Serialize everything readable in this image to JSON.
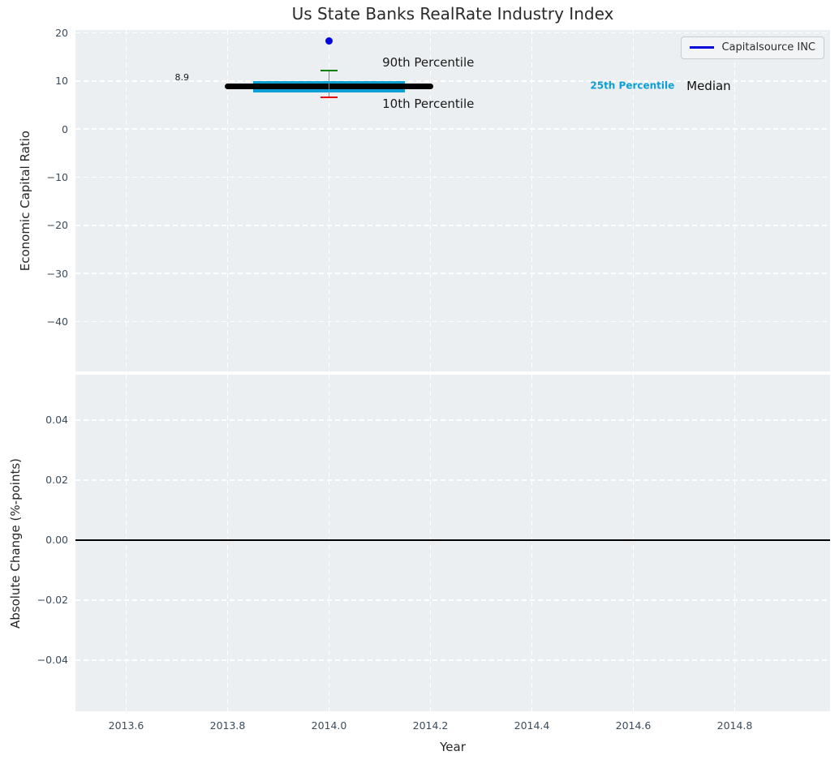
{
  "figure": {
    "title": "Us State Banks RealRate Industry Index",
    "colors": {
      "axes_background": "#ebeff1",
      "grid": "#ffffff",
      "tick_label": "#3b4c5c",
      "text": "#262626",
      "company_blue": "#0404dd",
      "percentile_cyan": "#0d9fd4",
      "p90_green": "#008000",
      "p10_red": "#e8000b",
      "median_black": "#000000"
    }
  },
  "chart_data": [
    {
      "id": "economic-capital-ratio-panel",
      "type": "line",
      "title": "Us State Banks RealRate Industry Index",
      "ylabel": "Economic Capital Ratio",
      "xlim": [
        2013.5,
        2014.988
      ],
      "ylim": [
        -50.4,
        20.6
      ],
      "grid": "white-dashed",
      "legend_position": "upper right",
      "xticks": [
        {
          "v": 2013.6
        },
        {
          "v": 2013.8
        },
        {
          "v": 2014.0
        },
        {
          "v": 2014.2
        },
        {
          "v": 2014.4
        },
        {
          "v": 2014.6
        },
        {
          "v": 2014.8
        }
      ],
      "yticks": [
        {
          "v": 20,
          "label": "20"
        },
        {
          "v": 10,
          "label": "10"
        },
        {
          "v": 0,
          "label": "0"
        },
        {
          "v": -10,
          "label": "−10"
        },
        {
          "v": -20,
          "label": "−20"
        },
        {
          "v": -30,
          "label": "−30"
        },
        {
          "v": -40,
          "label": "−40"
        }
      ],
      "series": [
        {
          "name": "25th Percentile",
          "type": "line",
          "x": [
            2013.85,
            2014.15
          ],
          "y": [
            8.8,
            8.8
          ],
          "color": "#0d9fd4",
          "linewidth": 14,
          "cap": "butt"
        },
        {
          "name": "Median",
          "type": "line",
          "x": [
            2013.8,
            2014.2
          ],
          "y": [
            8.9,
            8.9
          ],
          "color": "#000000",
          "linewidth": 7,
          "cap": "round"
        },
        {
          "name": "10th-90th Percentile Range",
          "type": "errorbar",
          "x": 2014.0,
          "y_low": 6.6,
          "y_high": 12.2,
          "line_color": "#888888",
          "cap_high_color": "#008000",
          "cap_low_color": "#e8000b"
        },
        {
          "name": "Capitalsource INC",
          "type": "scatter",
          "x": [
            2014.0
          ],
          "y": [
            18.4
          ],
          "color": "#0404dd"
        }
      ],
      "annotations": [
        {
          "name": "median-value-label",
          "text": "8.9",
          "x": 2013.71,
          "y": 10.7,
          "size": 11,
          "anchor": "center",
          "color": "#1a1a1a"
        },
        {
          "name": "p90-label",
          "text": "90th Percentile",
          "x": 2014.105,
          "y": 13.8,
          "size": 15,
          "anchor": "left",
          "color": "#1a1a1a"
        },
        {
          "name": "p10-label",
          "text": "10th Percentile",
          "x": 2014.105,
          "y": 5.3,
          "size": 15,
          "anchor": "left",
          "color": "#1a1a1a"
        },
        {
          "name": "p25-label",
          "text": "25th Percentile",
          "x": 2014.515,
          "y": 8.9,
          "size": 12,
          "bold": true,
          "anchor": "left",
          "color": "#0d9fd4"
        },
        {
          "name": "median-label",
          "text": "Median",
          "x": 2014.705,
          "y": 9.0,
          "size": 15,
          "anchor": "left",
          "color": "#111111"
        }
      ],
      "legend": {
        "label": "Capitalsource INC",
        "line_color": "#0404dd"
      }
    },
    {
      "id": "absolute-change-panel",
      "type": "line",
      "ylabel": "Absolute Change (%-points)",
      "xlabel": "Year",
      "xlim": [
        2013.5,
        2014.988
      ],
      "ylim": [
        -0.0571,
        0.0551
      ],
      "grid": "white-dashed",
      "xticks": [
        {
          "v": 2013.6,
          "label": "2013.6"
        },
        {
          "v": 2013.8,
          "label": "2013.8"
        },
        {
          "v": 2014.0,
          "label": "2014.0"
        },
        {
          "v": 2014.2,
          "label": "2014.2"
        },
        {
          "v": 2014.4,
          "label": "2014.4"
        },
        {
          "v": 2014.6,
          "label": "2014.6"
        },
        {
          "v": 2014.8,
          "label": "2014.8"
        }
      ],
      "yticks": [
        {
          "v": 0.04,
          "label": "0.04"
        },
        {
          "v": 0.02,
          "label": "0.02"
        },
        {
          "v": 0,
          "label": "0.00"
        },
        {
          "v": -0.02,
          "label": "−0.02"
        },
        {
          "v": -0.04,
          "label": "−0.04"
        }
      ],
      "series": [
        {
          "name": "zero-line",
          "type": "hline",
          "y": 0,
          "color": "#000000",
          "linewidth": 1.6
        }
      ],
      "annotations": []
    }
  ]
}
